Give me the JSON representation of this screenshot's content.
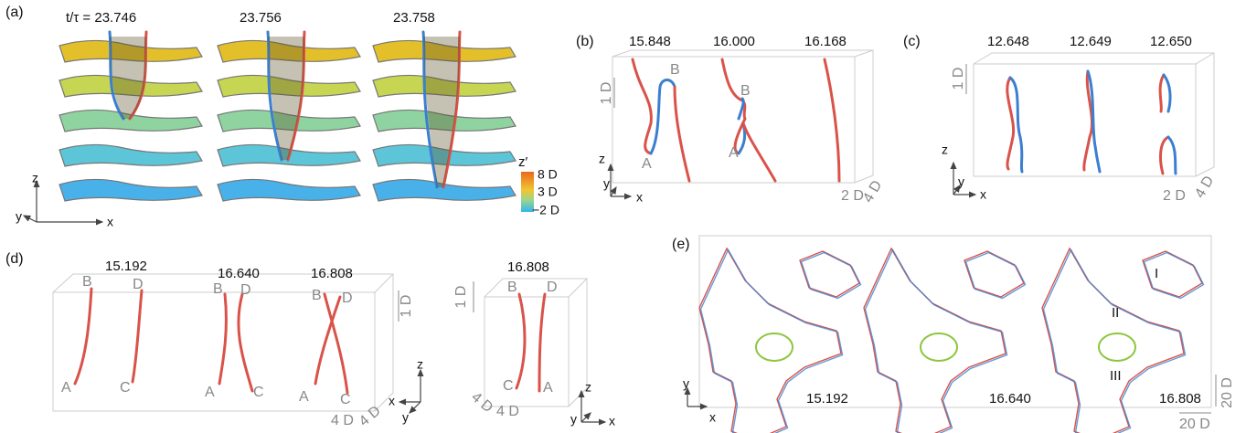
{
  "panels": {
    "a": {
      "label": "(a)",
      "times": [
        "t/τ = 23.746",
        "23.756",
        "23.758"
      ],
      "colorbar": {
        "title": "z′",
        "ticks": [
          "8 D",
          "3 D",
          "−2 D"
        ]
      },
      "axes": [
        "z",
        "y",
        "x"
      ]
    },
    "b": {
      "label": "(b)",
      "times": [
        "15.848",
        "16.000",
        "16.168"
      ],
      "points": [
        "A",
        "B",
        "A",
        "B"
      ],
      "scale": [
        "1 D",
        "2 D",
        "4 D"
      ],
      "axes": [
        "z",
        "y",
        "x"
      ]
    },
    "c": {
      "label": "(c)",
      "times": [
        "12.648",
        "12.649",
        "12.650"
      ],
      "scale": [
        "1 D",
        "2 D",
        "4 D"
      ],
      "axes": [
        "z",
        "y",
        "x"
      ]
    },
    "d": {
      "label": "(d)",
      "times": [
        "15.192",
        "16.640",
        "16.808"
      ],
      "points": [
        "B",
        "D",
        "A",
        "C",
        "B",
        "D",
        "A",
        "C",
        "B",
        "D",
        "A",
        "C"
      ],
      "scale": [
        "1 D",
        "4 D",
        "4 D"
      ],
      "axes": [
        "x",
        "y",
        "z"
      ]
    },
    "d_zoom": {
      "time": "16.808",
      "points": [
        "B",
        "D",
        "C",
        "A"
      ],
      "scale": [
        "1 D",
        "4 D",
        "4 D"
      ],
      "axes": [
        "z",
        "x",
        "y"
      ]
    },
    "e": {
      "label": "(e)",
      "times": [
        "15.192",
        "16.640",
        "16.808"
      ],
      "regions": [
        "I",
        "II",
        "III"
      ],
      "scale": [
        "20 D",
        "20 D"
      ],
      "axes": [
        "y",
        "x"
      ]
    }
  }
}
